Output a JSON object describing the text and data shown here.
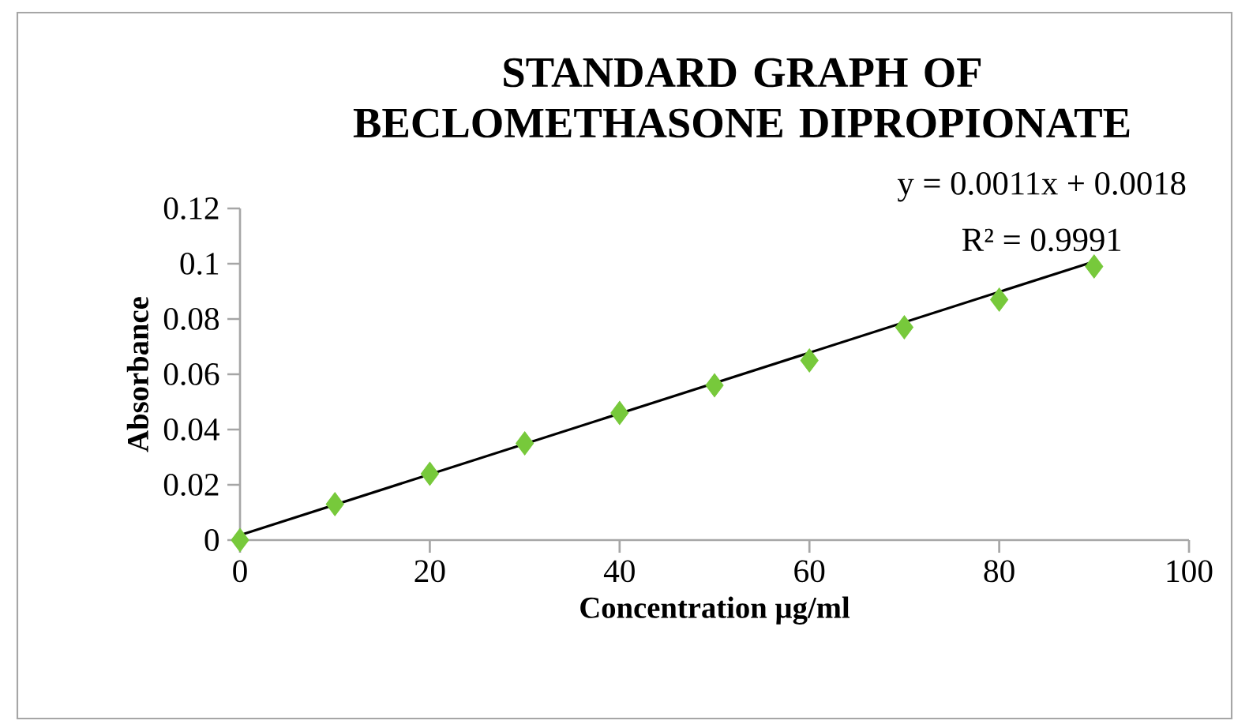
{
  "chart_data": {
    "type": "scatter",
    "title": "STANDARD GRAPH OF BECLOMETHASONE DIPROPIONATE",
    "xlabel": "Concentration µg/ml",
    "ylabel": "Absorbance",
    "x": [
      0,
      10,
      20,
      30,
      40,
      50,
      60,
      70,
      80,
      90
    ],
    "series": [
      {
        "color": "#77c93b",
        "marker": "diamond",
        "values": [
          0,
          0.013,
          0.024,
          0.035,
          0.046,
          0.056,
          0.065,
          0.077,
          0.087,
          0.099
        ]
      },
      {
        "type": "line",
        "color": "#000000",
        "marker": "none",
        "x": [
          0,
          90
        ],
        "values": [
          0.0018,
          0.1008
        ]
      }
    ],
    "annotations": [
      "y = 0.0011x + 0.0018",
      "R² = 0.9991"
    ],
    "xlim": [
      0,
      100
    ],
    "xticks": [
      0,
      20,
      40,
      60,
      80,
      100
    ],
    "ylim": [
      0,
      0.12
    ],
    "yticks": [
      0,
      0.02,
      0.04,
      0.06,
      0.08,
      0.1,
      0.12
    ],
    "grid": false
  }
}
